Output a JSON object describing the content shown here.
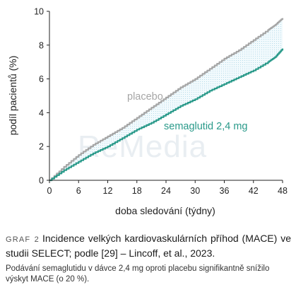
{
  "chart_data": {
    "type": "line",
    "title": "",
    "xlabel": "doba sledování (týdny)",
    "ylabel": "podíl pacientů (%)",
    "xlim": [
      0,
      48
    ],
    "ylim": [
      0,
      10
    ],
    "x_ticks": [
      0,
      6,
      12,
      18,
      24,
      30,
      36,
      42,
      48
    ],
    "y_ticks": [
      0,
      2,
      4,
      6,
      8,
      10
    ],
    "grid": false,
    "shaded_between_series": true,
    "series": [
      {
        "name": "placebo",
        "color": "#a6a6a6",
        "x": [
          0,
          3,
          6,
          9,
          12,
          15,
          18,
          21,
          24,
          27,
          30,
          33,
          36,
          39,
          42,
          45,
          46.5,
          48
        ],
        "y": [
          0,
          0.8,
          1.5,
          2.1,
          2.6,
          3.1,
          3.7,
          4.3,
          4.9,
          5.5,
          6.0,
          6.6,
          7.2,
          7.7,
          8.3,
          8.9,
          9.2,
          9.6
        ]
      },
      {
        "name": "semaglutid 2,4 mg",
        "color": "#2a9a8a",
        "x": [
          0,
          3,
          6,
          9,
          12,
          15,
          18,
          21,
          24,
          27,
          30,
          33,
          36,
          39,
          42,
          45,
          46.5,
          48
        ],
        "y": [
          0,
          0.6,
          1.1,
          1.6,
          2.0,
          2.5,
          3.0,
          3.4,
          3.9,
          4.4,
          4.8,
          5.3,
          5.7,
          6.1,
          6.5,
          7.0,
          7.3,
          7.8
        ]
      }
    ]
  },
  "watermark": "ReMedia",
  "caption": {
    "label": "GRAF 2",
    "title": "Incidence velkých kardiovaskulárních příhod (MACE) ve studii SELECT; podle [29] – Lincoff, et al., 2023.",
    "subtitle": "Podávání semaglutidu v dávce 2,4 mg oproti placebu signifikantně snížilo výskyt MACE (o 20 %)."
  }
}
